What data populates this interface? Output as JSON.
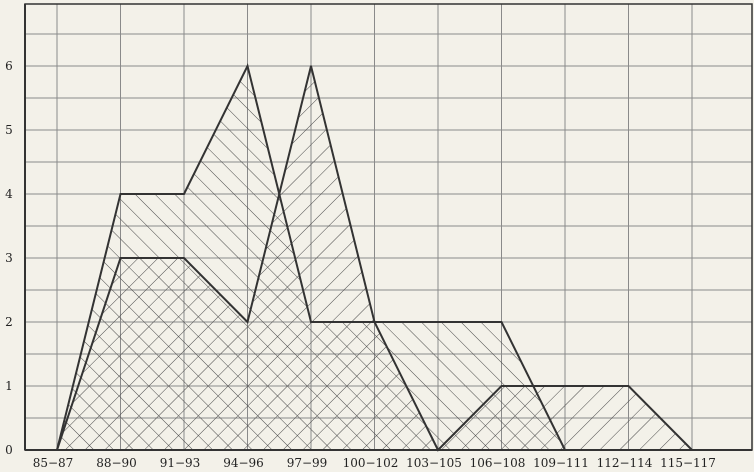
{
  "chart_data": {
    "type": "area",
    "title": "",
    "xlabel": "",
    "ylabel": "",
    "categories": [
      "85-87",
      "88-90",
      "91-93",
      "94-96",
      "97-99",
      "100-102",
      "103-105",
      "106-108",
      "109-111",
      "112-114",
      "115-117"
    ],
    "category_labels": [
      "85−87",
      "88−90",
      "91−93",
      "94−96",
      "97−99",
      "100−102",
      "103−105",
      "106−108",
      "109−111",
      "112−114",
      "115−117"
    ],
    "y_ticks": [
      "0",
      "1",
      "2",
      "3",
      "4",
      "5",
      "6"
    ],
    "ylim": [
      0,
      7
    ],
    "grid": true,
    "series": [
      {
        "values": [
          0,
          4,
          4,
          6,
          2,
          2,
          2,
          2,
          0,
          0,
          0
        ],
        "hatch": "backslash",
        "color": "#333333"
      },
      {
        "values": [
          0,
          3,
          3,
          2,
          6,
          2,
          0,
          1,
          1,
          1,
          0
        ],
        "hatch": "slash",
        "color": "#333333"
      }
    ],
    "colors": {
      "background": "#f3f1e9",
      "grid": "#8a8a8a",
      "line": "#333333",
      "hatch": "#4a4a4a"
    }
  }
}
